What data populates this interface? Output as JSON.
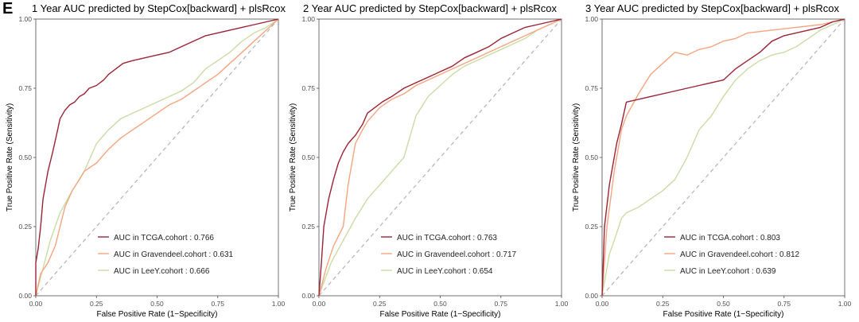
{
  "panel_label": "E",
  "colors": {
    "TCGA": "#9b2335",
    "Gravendeel": "#f4a57f",
    "LeeY": "#c9dca6",
    "diagonal": "#b3b3b3"
  },
  "chart_data": [
    {
      "type": "line",
      "title": "1 Year AUC predicted by StepCox[backward] + plsRcox",
      "xlabel": "False Positive Rate (1−Specificity)",
      "ylabel": "True Positive Rate (Sensitivity)",
      "xlim": [
        0,
        1
      ],
      "ylim": [
        0,
        1
      ],
      "xticks": [
        "0.00",
        "0.25",
        "0.50",
        "0.75",
        "1.00"
      ],
      "yticks": [
        "0.00",
        "0.25",
        "0.50",
        "0.75",
        "1.00"
      ],
      "legend_position": "bottom-center",
      "series": [
        {
          "name": "AUC in TCGA.cohort : 0.766",
          "color_key": "TCGA",
          "x": [
            0,
            0,
            0.01,
            0.02,
            0.03,
            0.05,
            0.07,
            0.09,
            0.1,
            0.12,
            0.14,
            0.16,
            0.18,
            0.2,
            0.22,
            0.25,
            0.28,
            0.3,
            0.33,
            0.36,
            0.4,
            0.45,
            0.5,
            0.55,
            0.6,
            0.65,
            0.7,
            0.75,
            0.8,
            0.85,
            0.9,
            0.95,
            1.0
          ],
          "y": [
            0,
            0.12,
            0.17,
            0.25,
            0.35,
            0.45,
            0.52,
            0.6,
            0.64,
            0.67,
            0.69,
            0.7,
            0.72,
            0.73,
            0.75,
            0.76,
            0.78,
            0.8,
            0.82,
            0.84,
            0.85,
            0.86,
            0.87,
            0.88,
            0.9,
            0.92,
            0.94,
            0.95,
            0.96,
            0.97,
            0.98,
            0.99,
            1.0
          ]
        },
        {
          "name": "AUC in Gravendeel.cohort : 0.631",
          "color_key": "Gravendeel",
          "x": [
            0,
            0.02,
            0.05,
            0.08,
            0.1,
            0.12,
            0.15,
            0.18,
            0.2,
            0.25,
            0.3,
            0.35,
            0.4,
            0.45,
            0.5,
            0.55,
            0.6,
            0.65,
            0.7,
            0.75,
            0.8,
            0.85,
            0.9,
            0.95,
            1.0
          ],
          "y": [
            0,
            0.08,
            0.12,
            0.18,
            0.25,
            0.32,
            0.38,
            0.42,
            0.45,
            0.48,
            0.53,
            0.57,
            0.6,
            0.63,
            0.66,
            0.69,
            0.71,
            0.74,
            0.77,
            0.8,
            0.84,
            0.88,
            0.92,
            0.96,
            1.0
          ]
        },
        {
          "name": "AUC in LeeY.cohort : 0.666",
          "color_key": "LeeY",
          "x": [
            0,
            0.03,
            0.06,
            0.1,
            0.15,
            0.2,
            0.25,
            0.3,
            0.35,
            0.4,
            0.45,
            0.5,
            0.55,
            0.6,
            0.65,
            0.7,
            0.75,
            0.8,
            0.85,
            0.9,
            0.95,
            1.0
          ],
          "y": [
            0,
            0.1,
            0.2,
            0.3,
            0.38,
            0.45,
            0.55,
            0.6,
            0.64,
            0.66,
            0.68,
            0.7,
            0.72,
            0.74,
            0.77,
            0.82,
            0.85,
            0.88,
            0.92,
            0.95,
            0.97,
            1.0
          ]
        }
      ]
    },
    {
      "type": "line",
      "title": "2 Year AUC predicted by StepCox[backward] + plsRcox",
      "xlabel": "False Positive Rate (1−Specificity)",
      "ylabel": "True Positive Rate (Sensitivity)",
      "xlim": [
        0,
        1
      ],
      "ylim": [
        0,
        1
      ],
      "xticks": [
        "0.00",
        "0.25",
        "0.50",
        "0.75",
        "1.00"
      ],
      "yticks": [
        "0.00",
        "0.25",
        "0.50",
        "0.75",
        "1.00"
      ],
      "legend_position": "bottom-center",
      "series": [
        {
          "name": "AUC in TCGA.cohort : 0.763",
          "color_key": "TCGA",
          "x": [
            0,
            0.01,
            0.02,
            0.04,
            0.06,
            0.08,
            0.1,
            0.12,
            0.15,
            0.18,
            0.2,
            0.23,
            0.26,
            0.3,
            0.35,
            0.4,
            0.45,
            0.5,
            0.55,
            0.6,
            0.65,
            0.7,
            0.75,
            0.8,
            0.85,
            0.9,
            0.95,
            1.0
          ],
          "y": [
            0,
            0.12,
            0.25,
            0.35,
            0.42,
            0.48,
            0.52,
            0.55,
            0.58,
            0.62,
            0.66,
            0.68,
            0.7,
            0.72,
            0.75,
            0.77,
            0.79,
            0.81,
            0.83,
            0.86,
            0.88,
            0.9,
            0.93,
            0.95,
            0.97,
            0.98,
            0.99,
            1.0
          ]
        },
        {
          "name": "AUC in Gravendeel.cohort : 0.717",
          "color_key": "Gravendeel",
          "x": [
            0,
            0.03,
            0.06,
            0.1,
            0.12,
            0.15,
            0.18,
            0.2,
            0.25,
            0.3,
            0.35,
            0.4,
            0.45,
            0.5,
            0.55,
            0.6,
            0.65,
            0.7,
            0.75,
            0.8,
            0.85,
            0.9,
            0.95,
            1.0
          ],
          "y": [
            0,
            0.1,
            0.18,
            0.25,
            0.4,
            0.55,
            0.6,
            0.63,
            0.68,
            0.71,
            0.73,
            0.76,
            0.78,
            0.8,
            0.82,
            0.84,
            0.86,
            0.88,
            0.9,
            0.92,
            0.94,
            0.96,
            0.98,
            1.0
          ]
        },
        {
          "name": "AUC in LeeY.cohort : 0.654",
          "color_key": "LeeY",
          "x": [
            0,
            0.05,
            0.1,
            0.15,
            0.2,
            0.25,
            0.3,
            0.35,
            0.4,
            0.45,
            0.5,
            0.55,
            0.6,
            0.65,
            0.7,
            0.75,
            0.8,
            0.85,
            0.9,
            0.95,
            1.0
          ],
          "y": [
            0,
            0.12,
            0.2,
            0.28,
            0.35,
            0.4,
            0.45,
            0.5,
            0.65,
            0.72,
            0.76,
            0.8,
            0.83,
            0.85,
            0.87,
            0.89,
            0.91,
            0.93,
            0.96,
            0.98,
            1.0
          ]
        }
      ]
    },
    {
      "type": "line",
      "title": "3 Year AUC predicted by StepCox[backward] + plsRcox",
      "xlabel": "False Positive Rate (1−Specificity)",
      "ylabel": "True Positive Rate (Sensitivity)",
      "xlim": [
        0,
        1
      ],
      "ylim": [
        0,
        1
      ],
      "xticks": [
        "0.00",
        "0.25",
        "0.50",
        "0.75",
        "1.00"
      ],
      "yticks": [
        "0.00",
        "0.25",
        "0.50",
        "0.75",
        "1.00"
      ],
      "legend_position": "bottom-center",
      "series": [
        {
          "name": "AUC in TCGA.cohort : 0.803",
          "color_key": "TCGA",
          "x": [
            0,
            0.01,
            0.03,
            0.06,
            0.08,
            0.1,
            0.15,
            0.2,
            0.3,
            0.4,
            0.5,
            0.55,
            0.6,
            0.65,
            0.7,
            0.75,
            0.8,
            0.85,
            0.9,
            0.95,
            1.0
          ],
          "y": [
            0,
            0.25,
            0.4,
            0.55,
            0.62,
            0.7,
            0.71,
            0.72,
            0.74,
            0.76,
            0.78,
            0.82,
            0.85,
            0.88,
            0.92,
            0.94,
            0.95,
            0.96,
            0.97,
            0.99,
            1.0
          ]
        },
        {
          "name": "AUC in Gravendeel.cohort : 0.812",
          "color_key": "Gravendeel",
          "x": [
            0,
            0.02,
            0.05,
            0.08,
            0.1,
            0.15,
            0.2,
            0.25,
            0.3,
            0.35,
            0.4,
            0.45,
            0.5,
            0.55,
            0.6,
            0.7,
            0.8,
            0.9,
            0.95,
            1.0
          ],
          "y": [
            0,
            0.25,
            0.45,
            0.6,
            0.65,
            0.73,
            0.8,
            0.84,
            0.88,
            0.87,
            0.89,
            0.9,
            0.92,
            0.93,
            0.95,
            0.96,
            0.97,
            0.98,
            0.99,
            1.0
          ]
        },
        {
          "name": "AUC in LeeY.cohort : 0.639",
          "color_key": "LeeY",
          "x": [
            0,
            0.03,
            0.05,
            0.08,
            0.1,
            0.15,
            0.2,
            0.25,
            0.3,
            0.35,
            0.4,
            0.45,
            0.5,
            0.55,
            0.6,
            0.65,
            0.7,
            0.75,
            0.8,
            0.85,
            0.9,
            0.95,
            1.0
          ],
          "y": [
            0,
            0.15,
            0.2,
            0.28,
            0.3,
            0.32,
            0.35,
            0.38,
            0.42,
            0.5,
            0.6,
            0.65,
            0.72,
            0.78,
            0.82,
            0.85,
            0.87,
            0.88,
            0.9,
            0.93,
            0.96,
            0.98,
            1.0
          ]
        }
      ]
    }
  ]
}
